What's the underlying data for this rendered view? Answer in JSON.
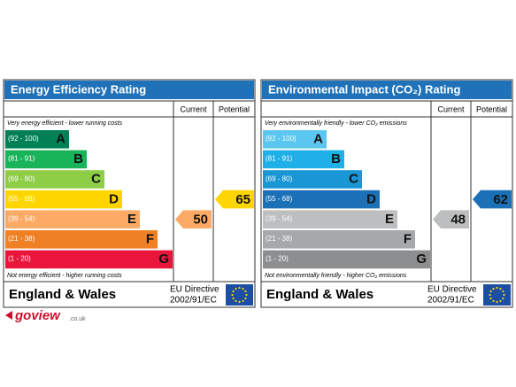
{
  "panels": [
    {
      "title": "Energy Efficiency Rating",
      "col_current": "Current",
      "col_potential": "Potential",
      "top_note": "Very energy efficient - lower running costs",
      "bottom_note": "Not energy efficient - higher running costs",
      "bands": [
        {
          "range": "(92 - 100)",
          "letter": "A",
          "color": "#008054"
        },
        {
          "range": "(81 - 91)",
          "letter": "B",
          "color": "#19b459"
        },
        {
          "range": "(69 - 80)",
          "letter": "C",
          "color": "#8dce46"
        },
        {
          "range": "(55 - 68)",
          "letter": "D",
          "color": "#ffd500"
        },
        {
          "range": "(39 - 54)",
          "letter": "E",
          "color": "#fcaa65"
        },
        {
          "range": "(21 - 38)",
          "letter": "F",
          "color": "#ef8023"
        },
        {
          "range": "(1 - 20)",
          "letter": "G",
          "color": "#e9153b"
        }
      ],
      "current": 50,
      "potential": 65,
      "region": "England & Wales",
      "directive": [
        "EU Directive",
        "2002/91/EC"
      ]
    },
    {
      "title": "Environmental Impact (CO₂) Rating",
      "col_current": "Current",
      "col_potential": "Potential",
      "top_note": "Very environmentally friendly - lower CO₂ emissions",
      "bottom_note": "Not environmentally friendly - higher CO₂ emissions",
      "bands": [
        {
          "range": "(92 - 100)",
          "letter": "A",
          "color": "#5bc6f0"
        },
        {
          "range": "(81 - 91)",
          "letter": "B",
          "color": "#1eb0e6"
        },
        {
          "range": "(69 - 80)",
          "letter": "C",
          "color": "#1a96d4"
        },
        {
          "range": "(55 - 68)",
          "letter": "D",
          "color": "#1c70b6"
        },
        {
          "range": "(39 - 54)",
          "letter": "E",
          "color": "#bcbec0"
        },
        {
          "range": "(21 - 38)",
          "letter": "F",
          "color": "#a6a8ab"
        },
        {
          "range": "(1 - 20)",
          "letter": "G",
          "color": "#8d8e90"
        }
      ],
      "current": 48,
      "potential": 62,
      "region": "England & Wales",
      "directive": [
        "EU Directive",
        "2002/91/EC"
      ]
    }
  ],
  "logo": "goview",
  "logo_domain": ".co.uk"
}
